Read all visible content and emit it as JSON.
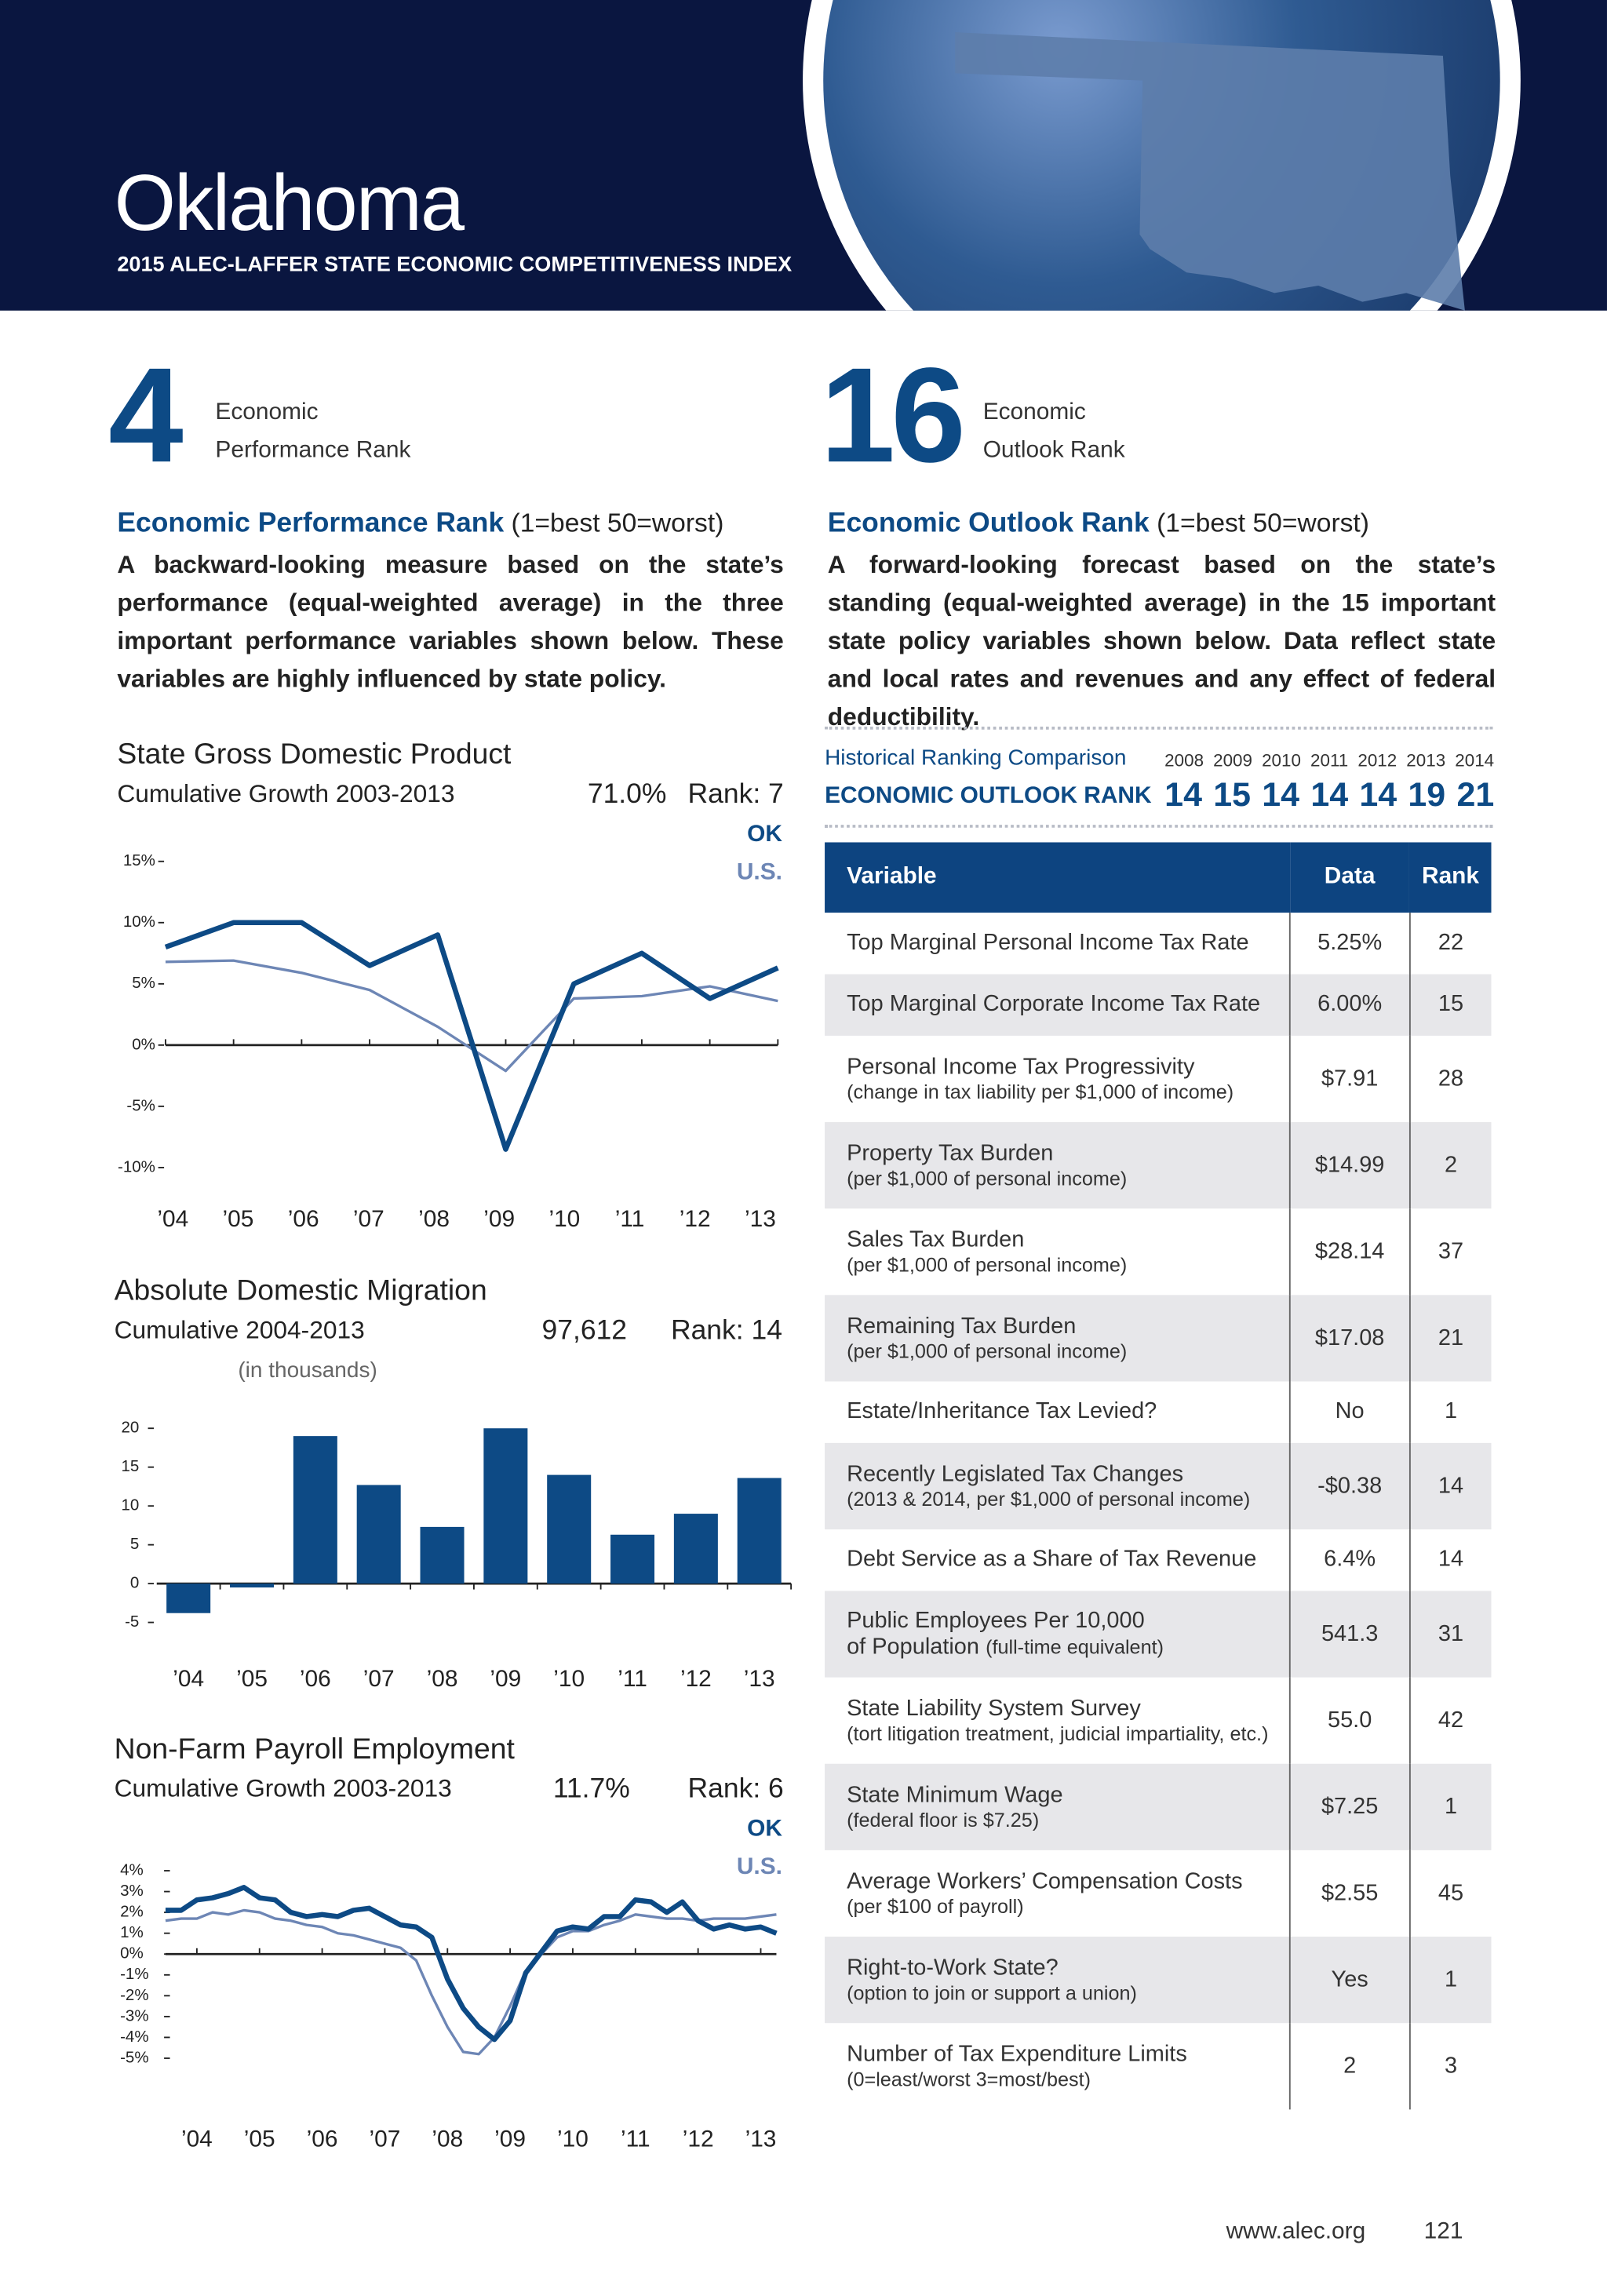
{
  "header": {
    "title": "Oklahoma",
    "subtitle": "2015 ALEC-LAFFER STATE ECONOMIC COMPETITIVENESS INDEX"
  },
  "performance": {
    "rank": 4,
    "label_1": "Economic",
    "label_2": "Performance Rank",
    "heading": "Economic Performance Rank",
    "scale": "(1=best  50=worst)",
    "text": "A backward-looking measure based on the state’s performance (equal-weighted average) in the three important performance variables shown below. These variables are highly influenced by state policy."
  },
  "outlook": {
    "rank": 16,
    "label_1": "Economic",
    "label_2": "Outlook Rank",
    "heading": "Economic Outlook Rank",
    "scale": "(1=best  50=worst)",
    "text": "A forward-looking forecast based on the state’s standing (equal-weighted average) in the 15 important state policy variables shown below. Data reflect state and local rates and revenues and any effect of federal deductibility."
  },
  "history": {
    "label": "Historical Ranking Comparison",
    "row_label": "ECONOMIC OUTLOOK RANK",
    "years": [
      2008,
      2009,
      2010,
      2011,
      2012,
      2013,
      2014
    ],
    "ranks": [
      14,
      15,
      14,
      14,
      14,
      19,
      21
    ]
  },
  "chart_data": [
    {
      "type": "line",
      "title": "State Gross Domestic Product",
      "subtitle": "Cumulative Growth 2003-2013",
      "stat": "71.0%",
      "rank": "Rank: 7",
      "categories": [
        "’04",
        "’05",
        "’06",
        "’07",
        "’08",
        "’09",
        "’10",
        "’11",
        "’12",
        "’13"
      ],
      "series": [
        {
          "name": "OK",
          "color": "#0d4a85",
          "values": [
            8,
            10,
            10,
            6.5,
            9,
            -8.5,
            5,
            7.5,
            3.8,
            6.3
          ]
        },
        {
          "name": "U.S.",
          "color": "#6d86b5",
          "values": [
            6.8,
            6.9,
            5.9,
            4.5,
            1.5,
            -2.1,
            3.8,
            4,
            4.8,
            3.6
          ]
        }
      ],
      "ylim": [
        -10,
        15
      ],
      "yticks": [
        {
          "value": 15,
          "label": "15%"
        },
        {
          "value": 10,
          "label": "10%"
        },
        {
          "value": 5,
          "label": "5%"
        },
        {
          "value": 0,
          "label": "0%"
        },
        {
          "value": -5,
          "label": "-5%"
        },
        {
          "value": -10,
          "label": "-10%"
        }
      ]
    },
    {
      "type": "bar",
      "title": "Absolute Domestic Migration",
      "subtitle": "Cumulative 2004-2013",
      "unit_note": "(in thousands)",
      "stat": "97,612",
      "rank": "Rank: 14",
      "categories": [
        "’04",
        "’05",
        "’06",
        "’07",
        "’08",
        "’09",
        "’10",
        "’11",
        "’12",
        "’13"
      ],
      "values": [
        -3.8,
        -0.5,
        19,
        12.7,
        7.3,
        20,
        14,
        6.3,
        9,
        13.6
      ],
      "color": "#0d4a85",
      "ylim": [
        -5,
        20
      ],
      "yticks": [
        20,
        15,
        10,
        5,
        0,
        -5
      ]
    },
    {
      "type": "line",
      "title": "Non-Farm Payroll Employment",
      "subtitle": "Cumulative Growth 2003-2013",
      "stat": "11.7%",
      "rank": "Rank: 6",
      "x": [
        2004,
        2004.25,
        2004.5,
        2004.75,
        2005,
        2005.25,
        2005.5,
        2005.75,
        2006,
        2006.25,
        2006.5,
        2006.75,
        2007,
        2007.25,
        2007.5,
        2007.75,
        2008,
        2008.25,
        2008.5,
        2008.75,
        2009,
        2009.25,
        2009.5,
        2009.75,
        2010,
        2010.25,
        2010.5,
        2010.75,
        2011,
        2011.25,
        2011.5,
        2011.75,
        2012,
        2012.25,
        2012.5,
        2012.75,
        2013,
        2013.25,
        2013.5,
        2013.75
      ],
      "xlim": [
        2004,
        2013.75
      ],
      "xticks": [
        {
          "value": 2004.5,
          "label": "’04"
        },
        {
          "value": 2005.5,
          "label": "’05"
        },
        {
          "value": 2006.5,
          "label": "’06"
        },
        {
          "value": 2007.5,
          "label": "’07"
        },
        {
          "value": 2008.5,
          "label": "’08"
        },
        {
          "value": 2009.5,
          "label": "’09"
        },
        {
          "value": 2010.5,
          "label": "’10"
        },
        {
          "value": 2011.5,
          "label": "’11"
        },
        {
          "value": 2012.5,
          "label": "’12"
        },
        {
          "value": 2013.5,
          "label": "’13"
        }
      ],
      "series": [
        {
          "name": "OK",
          "color": "#0d4a85",
          "values": [
            2.1,
            2.1,
            2.6,
            2.7,
            2.9,
            3.2,
            2.7,
            2.6,
            2.0,
            1.8,
            1.9,
            1.8,
            2.1,
            2.2,
            1.8,
            1.4,
            1.3,
            0.8,
            -1.2,
            -2.6,
            -3.5,
            -4.1,
            -3.2,
            -0.9,
            0.1,
            1.1,
            1.3,
            1.2,
            1.8,
            1.8,
            2.6,
            2.5,
            2.0,
            2.5,
            1.6,
            1.2,
            1.4,
            1.2,
            1.3,
            1.0
          ]
        },
        {
          "name": "U.S.",
          "color": "#6d86b5",
          "values": [
            1.6,
            1.7,
            1.7,
            2.0,
            1.9,
            2.1,
            2.0,
            1.7,
            1.6,
            1.4,
            1.3,
            1.0,
            0.9,
            0.7,
            0.5,
            0.3,
            -0.3,
            -2.0,
            -3.5,
            -4.7,
            -4.8,
            -4.0,
            -2.5,
            -0.8,
            0.0,
            0.8,
            1.1,
            1.1,
            1.4,
            1.6,
            1.9,
            1.8,
            1.7,
            1.7,
            1.6,
            1.7,
            1.7,
            1.7,
            1.8,
            1.9
          ]
        }
      ],
      "ylim": [
        -5,
        4
      ],
      "yticks": [
        {
          "value": 4,
          "label": "4%"
        },
        {
          "value": 3,
          "label": "3%"
        },
        {
          "value": 2,
          "label": "2%"
        },
        {
          "value": 1,
          "label": "1%"
        },
        {
          "value": 0,
          "label": "0%"
        },
        {
          "value": -1,
          "label": "-1%"
        },
        {
          "value": -2,
          "label": "-2%"
        },
        {
          "value": -3,
          "label": "-3%"
        },
        {
          "value": -4,
          "label": "-4%"
        },
        {
          "value": -5,
          "label": "-5%"
        }
      ]
    }
  ],
  "table": {
    "columns": [
      "Variable",
      "Data",
      "Rank"
    ],
    "rows": [
      {
        "label": "Top Marginal Personal Income Tax Rate",
        "data": "5.25%",
        "rank": 22
      },
      {
        "label": "Top Marginal Corporate Income Tax Rate",
        "data": "6.00%",
        "rank": 15
      },
      {
        "label": "Personal Income Tax Progressivity",
        "note": "(change in tax liability per $1,000 of income)",
        "data": "$7.91",
        "rank": 28
      },
      {
        "label": "Property Tax Burden",
        "note": "(per $1,000 of personal income)",
        "data": "$14.99",
        "rank": 2
      },
      {
        "label": "Sales Tax Burden",
        "note": "(per $1,000 of personal income)",
        "data": "$28.14",
        "rank": 37
      },
      {
        "label": "Remaining Tax Burden",
        "note": "(per $1,000 of personal income)",
        "data": "$17.08",
        "rank": 21
      },
      {
        "label": "Estate/Inheritance Tax Levied?",
        "data": "No",
        "rank": 1
      },
      {
        "label": "Recently Legislated Tax Changes",
        "note": "(2013 & 2014, per $1,000 of personal income)",
        "data": "-$0.38",
        "rank": 14
      },
      {
        "label": "Debt Service as a Share of Tax Revenue",
        "data": "6.4%",
        "rank": 14
      },
      {
        "label": "Public Employees Per 10,000",
        "label_2": "of Population",
        "note": "(full-time equivalent)",
        "data": "541.3",
        "rank": 31
      },
      {
        "label": "State Liability System Survey",
        "note": "(tort litigation treatment, judicial impartiality, etc.)",
        "data": "55.0",
        "rank": 42
      },
      {
        "label": "State Minimum Wage",
        "note": "(federal floor is $7.25)",
        "data": "$7.25",
        "rank": 1
      },
      {
        "label": "Average Workers’ Compensation Costs",
        "note": "(per $100 of payroll)",
        "data": "$2.55",
        "rank": 45
      },
      {
        "label": "Right-to-Work State?",
        "note": "(option to join or support a union)",
        "data": "Yes",
        "rank": 1
      },
      {
        "label": "Number of Tax Expenditure Limits",
        "note": "(0=least/worst   3=most/best)",
        "data": "2",
        "rank": 3
      }
    ]
  },
  "footer": {
    "url": "www.alec.org",
    "page": 121
  }
}
